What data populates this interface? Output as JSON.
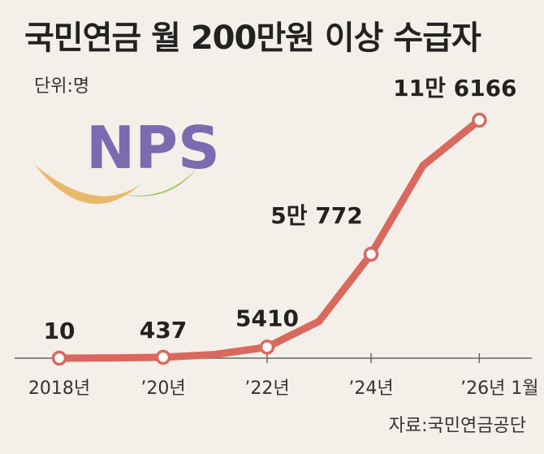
{
  "title": "국민연금 월 200만원 이상 수급자",
  "unit": "단위:명",
  "source": "자료:국민연금공단",
  "logo": {
    "text": "NPS",
    "color": "#7b6bb0"
  },
  "colors": {
    "line": "#d9685e",
    "axis": "#666666",
    "marker_fill": "#ffffff"
  },
  "chart_data": {
    "type": "line",
    "title": "국민연금 월 200만원 이상 수급자",
    "ylabel": "",
    "xlabel": "",
    "unit": "명",
    "grid": false,
    "legend": "none",
    "x_ticks": [
      "2018년",
      "’20년",
      "’22년",
      "’24년",
      "’26년 1월"
    ],
    "x": [
      "2018",
      "2019",
      "2020",
      "2021",
      "2022",
      "2023",
      "2024",
      "2025",
      "2026-01"
    ],
    "values": [
      10,
      120,
      437,
      1800,
      5410,
      18000,
      50772,
      94000,
      116166
    ],
    "marked_points": [
      {
        "x": "2018",
        "value": 10,
        "label": "10"
      },
      {
        "x": "2020",
        "value": 437,
        "label": "437"
      },
      {
        "x": "2022",
        "value": 5410,
        "label": "5410"
      },
      {
        "x": "2024",
        "value": 50772,
        "label": "5만 772"
      },
      {
        "x": "2026-01",
        "value": 116166,
        "label": "11만 6166"
      }
    ]
  }
}
